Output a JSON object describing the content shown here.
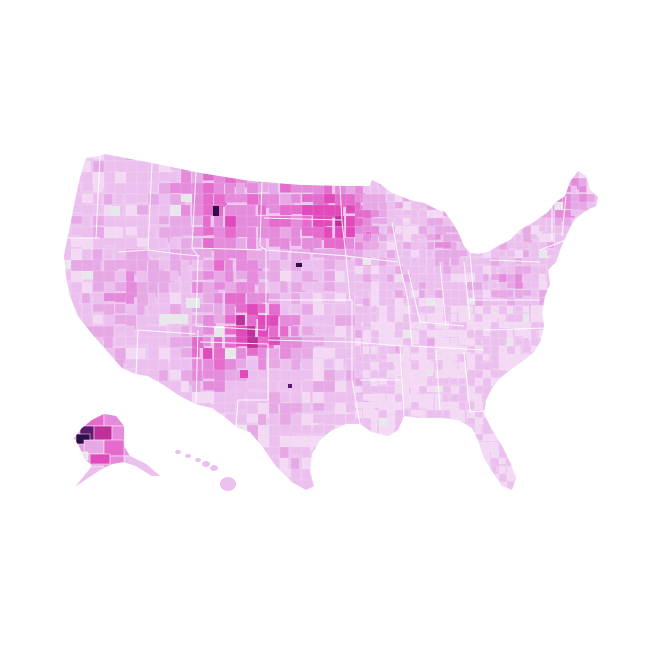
{
  "map": {
    "type": "choropleth",
    "geography": "us-counties",
    "colors": {
      "background": "#ffffff",
      "border": "#ffffff",
      "no_data": "#e8e8ec",
      "scale": [
        "#f3d9f4",
        "#ecc0ee",
        "#e7a8e6",
        "#e58bdc",
        "#e56ccc",
        "#e04aba",
        "#c0309a",
        "#5e1a6e",
        "#2d0f4a"
      ]
    },
    "legend": null,
    "title": ""
  }
}
